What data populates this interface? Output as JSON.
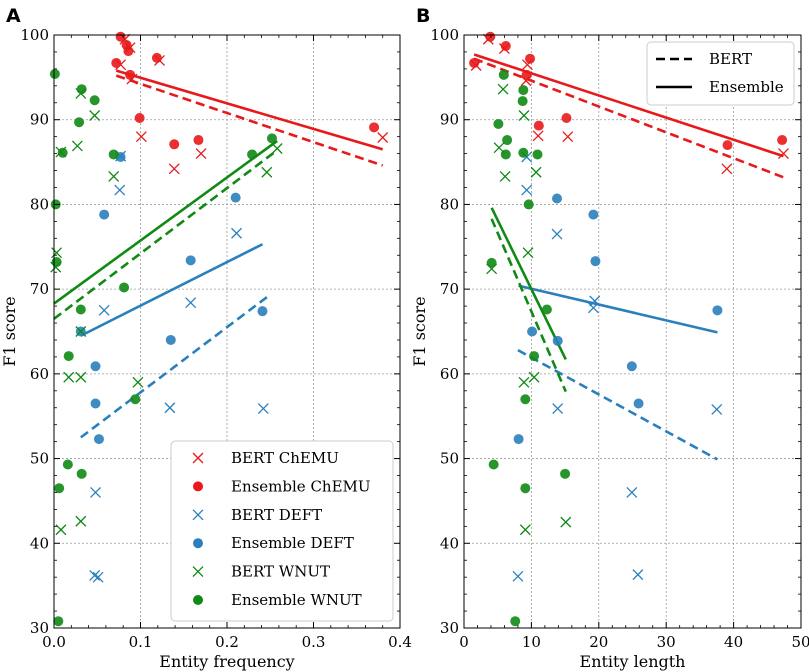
{
  "colors": {
    "chemu": "#e8191a",
    "deft": "#2a80bd",
    "wnut": "#0f8a14"
  },
  "chart_data": [
    {
      "type": "scatter",
      "panel_label": "A",
      "xlabel": "Entity frequency",
      "ylabel": "F1 score",
      "xlim": [
        0,
        0.4
      ],
      "ylim": [
        30,
        100
      ],
      "xticks": [
        0.0,
        0.1,
        0.2,
        0.3,
        0.4
      ],
      "xtick_labels": [
        "0.0",
        "0.1",
        "0.2",
        "0.3",
        "0.4"
      ],
      "yticks": [
        30,
        40,
        50,
        60,
        70,
        80,
        90,
        100
      ],
      "ytick_labels": [
        "30",
        "40",
        "50",
        "60",
        "70",
        "80",
        "90",
        "100"
      ],
      "grid": true,
      "legend": {
        "position": "lower-right",
        "entries": [
          {
            "label": "BERT ChEMU",
            "series": "chemu",
            "marker": "x"
          },
          {
            "label": "Ensemble ChEMU",
            "series": "chemu",
            "marker": "o"
          },
          {
            "label": "BERT DEFT",
            "series": "deft",
            "marker": "x"
          },
          {
            "label": "Ensemble DEFT",
            "series": "deft",
            "marker": "o"
          },
          {
            "label": "BERT WNUT",
            "series": "wnut",
            "marker": "x"
          },
          {
            "label": "Ensemble WNUT",
            "series": "wnut",
            "marker": "o"
          }
        ]
      },
      "series": [
        {
          "name": "BERT ChEMU",
          "dataset": "chemu",
          "model": "bert",
          "marker": "x",
          "points": [
            [
              0.077,
              96.5
            ],
            [
              0.082,
              99.5
            ],
            [
              0.088,
              98.5
            ],
            [
              0.09,
              94.8
            ],
            [
              0.101,
              88
            ],
            [
              0.122,
              97
            ],
            [
              0.139,
              84.2
            ],
            [
              0.17,
              86
            ],
            [
              0.38,
              87.9
            ]
          ]
        },
        {
          "name": "Ensemble ChEMU",
          "dataset": "chemu",
          "model": "ensemble",
          "marker": "o",
          "points": [
            [
              0.072,
              96.7
            ],
            [
              0.077,
              99.8
            ],
            [
              0.084,
              98.8
            ],
            [
              0.086,
              98.1
            ],
            [
              0.088,
              95.3
            ],
            [
              0.099,
              90.2
            ],
            [
              0.119,
              97.3
            ],
            [
              0.139,
              87.1
            ],
            [
              0.167,
              87.6
            ],
            [
              0.37,
              89.1
            ]
          ]
        },
        {
          "name": "BERT DEFT",
          "dataset": "deft",
          "model": "bert",
          "marker": "x",
          "points": [
            [
              0.077,
              85.7
            ],
            [
              0.076,
              81.7
            ],
            [
              0.058,
              67.5
            ],
            [
              0.048,
              46
            ],
            [
              0.047,
              36.2
            ],
            [
              0.051,
              36
            ],
            [
              0.134,
              56
            ],
            [
              0.158,
              68.4
            ],
            [
              0.211,
              76.6
            ],
            [
              0.242,
              55.9
            ]
          ]
        },
        {
          "name": "Ensemble DEFT",
          "dataset": "deft",
          "model": "ensemble",
          "marker": "o",
          "points": [
            [
              0.077,
              85.6
            ],
            [
              0.058,
              78.8
            ],
            [
              0.031,
              65
            ],
            [
              0.048,
              60.9
            ],
            [
              0.048,
              56.5
            ],
            [
              0.052,
              52.3
            ],
            [
              0.135,
              64
            ],
            [
              0.158,
              73.4
            ],
            [
              0.21,
              80.8
            ],
            [
              0.241,
              67.4
            ]
          ]
        },
        {
          "name": "BERT WNUT",
          "dataset": "wnut",
          "model": "bert",
          "marker": "x",
          "points": [
            [
              0.003,
              74.3
            ],
            [
              0.002,
              72.6
            ],
            [
              0.008,
              86.2
            ],
            [
              0.027,
              86.9
            ],
            [
              0.031,
              93.1
            ],
            [
              0.047,
              90.5
            ],
            [
              0.069,
              83.3
            ],
            [
              0.031,
              65
            ],
            [
              0.017,
              59.6
            ],
            [
              0.031,
              59.6
            ],
            [
              0.097,
              59
            ],
            [
              0.031,
              42.6
            ],
            [
              0.008,
              41.6
            ],
            [
              0.246,
              83.8
            ],
            [
              0.258,
              86.6
            ]
          ]
        },
        {
          "name": "Ensemble WNUT",
          "dataset": "wnut",
          "model": "ensemble",
          "marker": "o",
          "points": [
            [
              0.001,
              95.4
            ],
            [
              0.029,
              89.7
            ],
            [
              0.032,
              93.6
            ],
            [
              0.047,
              92.3
            ],
            [
              0.069,
              85.9
            ],
            [
              0.01,
              86.1
            ],
            [
              0.002,
              80
            ],
            [
              0.003,
              73.2
            ],
            [
              0.031,
              67.6
            ],
            [
              0.081,
              70.2
            ],
            [
              0.017,
              62.1
            ],
            [
              0.094,
              57
            ],
            [
              0.016,
              49.3
            ],
            [
              0.032,
              48.2
            ],
            [
              0.006,
              46.5
            ],
            [
              0.005,
              30.8
            ],
            [
              0.229,
              85.9
            ],
            [
              0.252,
              87.8
            ]
          ]
        }
      ],
      "fit_lines": [
        {
          "name": "BERT ChEMU fit",
          "dataset": "chemu",
          "style": "dashed",
          "x": [
            0.072,
            0.38
          ],
          "y": [
            95.2,
            84.6
          ]
        },
        {
          "name": "Ensemble ChEMU fit",
          "dataset": "chemu",
          "style": "solid",
          "x": [
            0.072,
            0.38
          ],
          "y": [
            95.8,
            86.5
          ]
        },
        {
          "name": "BERT DEFT fit",
          "dataset": "deft",
          "style": "dashed",
          "x": [
            0.031,
            0.248
          ],
          "y": [
            52.5,
            69.2
          ]
        },
        {
          "name": "Ensemble DEFT fit",
          "dataset": "deft",
          "style": "solid",
          "x": [
            0.031,
            0.241
          ],
          "y": [
            64.5,
            75.3
          ]
        },
        {
          "name": "BERT WNUT fit",
          "dataset": "wnut",
          "style": "dashed",
          "x": [
            0.0,
            0.258
          ],
          "y": [
            66.5,
            86.4
          ]
        },
        {
          "name": "Ensemble WNUT fit",
          "dataset": "wnut",
          "style": "solid",
          "x": [
            0.0,
            0.258
          ],
          "y": [
            68.3,
            87.5
          ]
        }
      ]
    },
    {
      "type": "scatter",
      "panel_label": "B",
      "xlabel": "Entity length",
      "ylabel": "F1 score",
      "xlim": [
        0,
        50
      ],
      "ylim": [
        30,
        100
      ],
      "xticks": [
        0,
        10,
        20,
        30,
        40,
        50
      ],
      "xtick_labels": [
        "0",
        "10",
        "20",
        "30",
        "40",
        "50"
      ],
      "yticks": [
        30,
        40,
        50,
        60,
        70,
        80,
        90,
        100
      ],
      "ytick_labels": [
        "30",
        "40",
        "50",
        "60",
        "70",
        "80",
        "90",
        "100"
      ],
      "grid": true,
      "legend": {
        "position": "top-right",
        "entries": [
          {
            "label": "BERT",
            "style": "dashed"
          },
          {
            "label": "Ensemble",
            "style": "solid"
          }
        ]
      },
      "series": [
        {
          "name": "BERT ChEMU",
          "dataset": "chemu",
          "model": "bert",
          "marker": "x",
          "points": [
            [
              1.8,
              96.4
            ],
            [
              3.6,
              99.5
            ],
            [
              6,
              98.4
            ],
            [
              9.2,
              94.6
            ],
            [
              9.4,
              96.5
            ],
            [
              11,
              88.1
            ],
            [
              15.4,
              88
            ],
            [
              39,
              84.2
            ],
            [
              47.4,
              86
            ]
          ]
        },
        {
          "name": "Ensemble ChEMU",
          "dataset": "chemu",
          "model": "ensemble",
          "marker": "o",
          "points": [
            [
              1.5,
              96.7
            ],
            [
              3.9,
              99.8
            ],
            [
              6.2,
              98.7
            ],
            [
              9.3,
              95.3
            ],
            [
              9.8,
              97.2
            ],
            [
              11.1,
              89.3
            ],
            [
              15.2,
              90.2
            ],
            [
              39.1,
              87
            ],
            [
              47.2,
              87.6
            ]
          ]
        },
        {
          "name": "BERT DEFT",
          "dataset": "deft",
          "model": "bert",
          "marker": "x",
          "points": [
            [
              9.3,
              85.6
            ],
            [
              9.3,
              81.7
            ],
            [
              13.8,
              76.5
            ],
            [
              19.4,
              68.6
            ],
            [
              19.2,
              67.8
            ],
            [
              13.9,
              55.9
            ],
            [
              24.9,
              46
            ],
            [
              25.8,
              36.3
            ],
            [
              8,
              36.1
            ],
            [
              37.5,
              55.8
            ]
          ]
        },
        {
          "name": "Ensemble DEFT",
          "dataset": "deft",
          "model": "ensemble",
          "marker": "o",
          "points": [
            [
              13.8,
              80.7
            ],
            [
              19.2,
              78.8
            ],
            [
              19.5,
              73.3
            ],
            [
              10.1,
              65
            ],
            [
              13.9,
              63.9
            ],
            [
              24.9,
              60.9
            ],
            [
              25.9,
              56.5
            ],
            [
              8.1,
              52.3
            ],
            [
              37.6,
              67.5
            ]
          ]
        },
        {
          "name": "BERT WNUT",
          "dataset": "wnut",
          "model": "bert",
          "marker": "x",
          "points": [
            [
              5.2,
              86.7
            ],
            [
              6.1,
              83.3
            ],
            [
              8.9,
              90.5
            ],
            [
              10.7,
              83.8
            ],
            [
              5.8,
              93.6
            ],
            [
              4.1,
              72.4
            ],
            [
              8.9,
              59
            ],
            [
              10.4,
              59.6
            ],
            [
              9.1,
              41.6
            ],
            [
              15.1,
              42.5
            ],
            [
              9.5,
              74.3
            ]
          ]
        },
        {
          "name": "Ensemble WNUT",
          "dataset": "wnut",
          "model": "ensemble",
          "marker": "o",
          "points": [
            [
              5.9,
              95.3
            ],
            [
              8.8,
              93.5
            ],
            [
              8.7,
              92.2
            ],
            [
              5.1,
              89.5
            ],
            [
              6.4,
              87.6
            ],
            [
              6.2,
              85.9
            ],
            [
              8.8,
              86.1
            ],
            [
              10.9,
              85.9
            ],
            [
              9.6,
              80
            ],
            [
              4.1,
              73.1
            ],
            [
              12.3,
              67.6
            ],
            [
              10.4,
              62.1
            ],
            [
              9.1,
              57
            ],
            [
              4.4,
              49.3
            ],
            [
              9.1,
              46.5
            ],
            [
              15,
              48.2
            ],
            [
              7.6,
              30.8
            ]
          ]
        }
      ],
      "fit_lines": [
        {
          "name": "BERT ChEMU fit",
          "dataset": "chemu",
          "style": "dashed",
          "x": [
            1.5,
            47.4
          ],
          "y": [
            97.2,
            83.2
          ]
        },
        {
          "name": "Ensemble ChEMU fit",
          "dataset": "chemu",
          "style": "solid",
          "x": [
            1.5,
            47.4
          ],
          "y": [
            97.7,
            85.7
          ]
        },
        {
          "name": "BERT DEFT fit",
          "dataset": "deft",
          "style": "dashed",
          "x": [
            8.0,
            37.6
          ],
          "y": [
            62.8,
            49.9
          ]
        },
        {
          "name": "Ensemble DEFT fit",
          "dataset": "deft",
          "style": "solid",
          "x": [
            8.1,
            37.6
          ],
          "y": [
            70.4,
            64.9
          ]
        },
        {
          "name": "BERT WNUT fit",
          "dataset": "wnut",
          "style": "dashed",
          "x": [
            4.1,
            15.1
          ],
          "y": [
            78.3,
            57.9
          ]
        },
        {
          "name": "Ensemble WNUT fit",
          "dataset": "wnut",
          "style": "solid",
          "x": [
            4.1,
            15.1
          ],
          "y": [
            79.6,
            61.7
          ]
        }
      ]
    }
  ]
}
